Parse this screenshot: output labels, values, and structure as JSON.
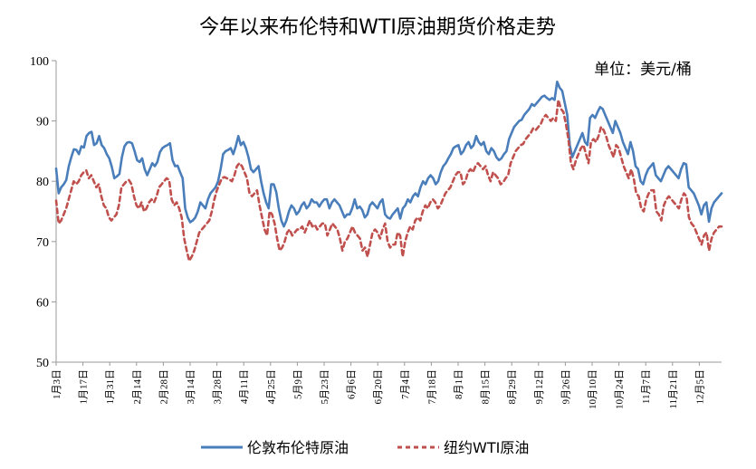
{
  "chart_data": {
    "type": "line",
    "title": "今年以来布伦特和WTI原油期货价格走势",
    "unit_label": "单位：美元/桶",
    "ylim": [
      50,
      100
    ],
    "yticks": [
      50,
      60,
      70,
      80,
      90,
      100
    ],
    "xlabel": "",
    "ylabel": "",
    "grid": false,
    "legend_position": "bottom",
    "x_tick_labels": [
      "1月3日",
      "1月17日",
      "1月31日",
      "2月14日",
      "2月28日",
      "3月14日",
      "3月28日",
      "4月11日",
      "4月25日",
      "5月9日",
      "5月23日",
      "6月6日",
      "6月20日",
      "7月4日",
      "7月18日",
      "8月1日",
      "8月15日",
      "8月29日",
      "9月12日",
      "9月26日",
      "10月10日",
      "10月24日",
      "11月7日",
      "11月21日",
      "12月5日"
    ],
    "series": [
      {
        "name": "伦敦布伦特原油",
        "color": "#4A7EBB",
        "dash": "solid",
        "values": [
          82.1,
          78,
          79,
          79.5,
          80.2,
          82.5,
          84,
          85.3,
          85.2,
          84.5,
          85.8,
          85.6,
          87.5,
          88,
          88.2,
          86,
          86.3,
          87.5,
          86,
          85.5,
          84.5,
          83.8,
          82.4,
          80.5,
          80.8,
          81.2,
          84,
          85.8,
          86.4,
          86.5,
          86.3,
          85,
          83.5,
          83.2,
          83.8,
          82,
          81,
          82,
          83,
          82.5,
          83.2,
          84.8,
          85.5,
          85.8,
          86,
          86.3,
          83.5,
          82.5,
          82.6,
          81.5,
          80.5,
          75.5,
          74,
          73.2,
          73.5,
          74,
          75,
          76.5,
          76,
          75.5,
          77,
          78,
          78.5,
          79,
          80,
          82,
          84.5,
          85,
          85.2,
          85.5,
          84.5,
          85.8,
          87.5,
          86,
          86.5,
          85.5,
          84,
          82,
          81.5,
          82,
          82.5,
          80,
          78,
          76.5,
          75.5,
          79.5,
          79.5,
          78.2,
          75.5,
          73.5,
          72.5,
          73.5,
          75,
          76,
          75.5,
          74.5,
          75,
          76,
          76.5,
          75.5,
          76,
          77,
          76.5,
          76.5,
          75.8,
          76.5,
          77,
          77,
          75.5,
          76.5,
          77,
          76.5,
          76,
          75,
          74,
          74.5,
          74.5,
          75.5,
          77,
          75.5,
          75.8,
          75.2,
          74,
          74.5,
          76,
          76.5,
          76,
          75.5,
          76.5,
          77,
          74.5,
          74,
          73.8,
          74.5,
          75,
          75.5,
          73.8,
          75.5,
          76,
          77,
          76.5,
          77.5,
          78,
          77.5,
          79,
          80,
          79.5,
          80.5,
          81,
          80.5,
          79.5,
          80,
          81.5,
          82.5,
          83,
          83.8,
          84.5,
          85.5,
          85.8,
          86,
          84.5,
          85,
          86,
          86.5,
          85.5,
          86,
          87.5,
          86.5,
          86,
          86.5,
          85,
          84.5,
          85.5,
          85,
          84,
          83.5,
          83.8,
          84.5,
          85,
          87,
          88,
          89,
          89.5,
          90,
          90.2,
          91,
          91.5,
          92,
          92.8,
          92.5,
          93,
          93.5,
          94,
          94.2,
          93.8,
          93.5,
          93.8,
          93.5,
          96.5,
          95.5,
          95,
          93,
          91,
          86,
          84,
          85,
          86,
          87,
          88,
          86.5,
          86,
          90.5,
          91,
          90.5,
          91.5,
          92.3,
          92,
          91,
          90,
          89,
          88,
          90,
          89,
          88,
          86.5,
          85.5,
          84.5,
          86.5,
          85,
          82.5,
          82,
          80,
          79.5,
          81,
          82,
          82.5,
          83,
          81,
          80.5,
          80,
          81,
          82,
          82.5,
          82,
          81.5,
          81,
          80.5,
          82,
          83,
          82.8,
          79,
          78.5,
          78,
          77,
          76,
          74.5,
          76,
          76.5,
          73.3,
          75.5,
          76.5,
          77,
          77.5,
          78
        ]
      },
      {
        "name": "纽约WTI原油",
        "color": "#C0504D",
        "dash": "dashed",
        "values": [
          76.8,
          73,
          73.5,
          74.5,
          75.5,
          77,
          78.5,
          80,
          79.5,
          80,
          81,
          81.5,
          81.8,
          80.5,
          81,
          80,
          79,
          79.5,
          77.5,
          76,
          75.5,
          74,
          73.5,
          74,
          74.5,
          76,
          79,
          79.5,
          80,
          80.2,
          79.5,
          77.5,
          76,
          75.5,
          76.5,
          75,
          75.5,
          76.5,
          77,
          76.5,
          77.5,
          79,
          79.5,
          80,
          80.5,
          80.2,
          77,
          76,
          76.5,
          75.5,
          74,
          70.5,
          68.5,
          66.8,
          67.5,
          68.5,
          70,
          71.5,
          72,
          72.5,
          73,
          73.5,
          75,
          77,
          78.5,
          79.5,
          80.5,
          80.7,
          80.5,
          80.3,
          80,
          81,
          82.5,
          83,
          82.5,
          81.5,
          80.5,
          78,
          77.5,
          78,
          78.5,
          76,
          74,
          72,
          71,
          75,
          74.5,
          73,
          70.5,
          68.5,
          69,
          70,
          71.5,
          72,
          71,
          71.5,
          72,
          72,
          72.5,
          71.5,
          72.5,
          73.5,
          72.5,
          72.8,
          72,
          72.5,
          73,
          73,
          71,
          72,
          73,
          72.5,
          72,
          70.5,
          68.5,
          70,
          70.5,
          71.5,
          72.5,
          71.5,
          71,
          70.5,
          68.5,
          69,
          67.5,
          69.5,
          71.5,
          72,
          71.5,
          70.5,
          72,
          73,
          70,
          69,
          69.5,
          69.5,
          71.5,
          71,
          67.5,
          70,
          71.5,
          72.5,
          72,
          73.5,
          74,
          73.5,
          75,
          76,
          75.5,
          76.5,
          77,
          76.5,
          75.5,
          76,
          77,
          78,
          78.5,
          79,
          80,
          81,
          81.5,
          81.5,
          79.5,
          80,
          81.5,
          82,
          81.5,
          82.5,
          83,
          82.5,
          82,
          82.5,
          81,
          80,
          81.5,
          81,
          80.5,
          79.5,
          79.8,
          80.5,
          81,
          83,
          84,
          85,
          85.5,
          86,
          86.2,
          87,
          87.5,
          88,
          88.8,
          88.5,
          89,
          89.5,
          90.5,
          91,
          90.5,
          90,
          90.5,
          90,
          93.5,
          92,
          91.5,
          89.5,
          87,
          83,
          82,
          83.5,
          84.5,
          85.5,
          86,
          84.5,
          83,
          86.5,
          87,
          86.5,
          87.5,
          89,
          88.5,
          87.5,
          86,
          85,
          84,
          86,
          85.5,
          84,
          82.5,
          81.5,
          80.5,
          82,
          80.5,
          78,
          77.5,
          75.5,
          75,
          77,
          78,
          78.5,
          78.5,
          75,
          74.5,
          73.5,
          76,
          77,
          77.5,
          77,
          76.5,
          76,
          75.5,
          77,
          78,
          77.5,
          74,
          73,
          72.5,
          71.5,
          70.5,
          69.5,
          71,
          71.5,
          68.5,
          70.5,
          71.5,
          72,
          72.5,
          72.5
        ]
      }
    ]
  }
}
